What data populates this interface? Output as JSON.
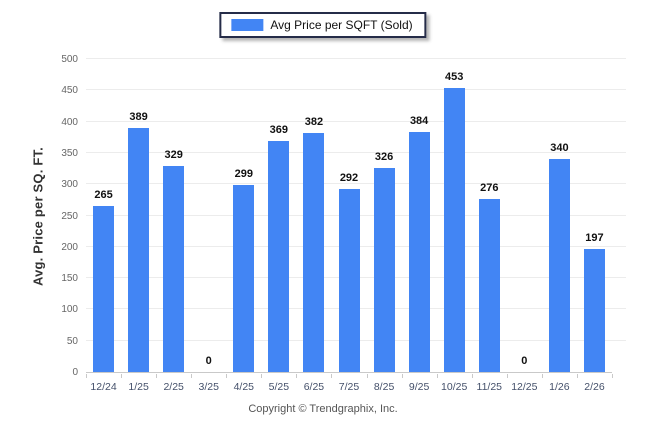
{
  "legend": {
    "label": "Avg Price per SQFT (Sold)"
  },
  "footer": {
    "text": "Copyright © Trendgraphix, Inc."
  },
  "colors": {
    "bar": "#4285f4",
    "grid": "#ececec",
    "axis_line": "#c9c9c9",
    "ytick_text": "#666666",
    "xtick_text": "#44506a",
    "value_label": "#111111",
    "legend_border": "#252c48",
    "footer_text": "#555555",
    "background": "#ffffff"
  },
  "chart_data": {
    "type": "bar",
    "title": "",
    "series_name": "Avg Price per SQFT (Sold)",
    "categories": [
      "12/24",
      "1/25",
      "2/25",
      "3/25",
      "4/25",
      "5/25",
      "6/25",
      "7/25",
      "8/25",
      "9/25",
      "10/25",
      "11/25",
      "12/25",
      "1/26",
      "2/26"
    ],
    "values": [
      265,
      389,
      329,
      0,
      299,
      369,
      382,
      292,
      326,
      384,
      453,
      276,
      0,
      340,
      197
    ],
    "xlabel": "",
    "ylabel": "Avg. Price per SQ. FT.",
    "ylim": [
      0,
      500
    ],
    "ytick_step": 50,
    "grid": true,
    "value_labels": true,
    "legend_position": "top-center"
  }
}
